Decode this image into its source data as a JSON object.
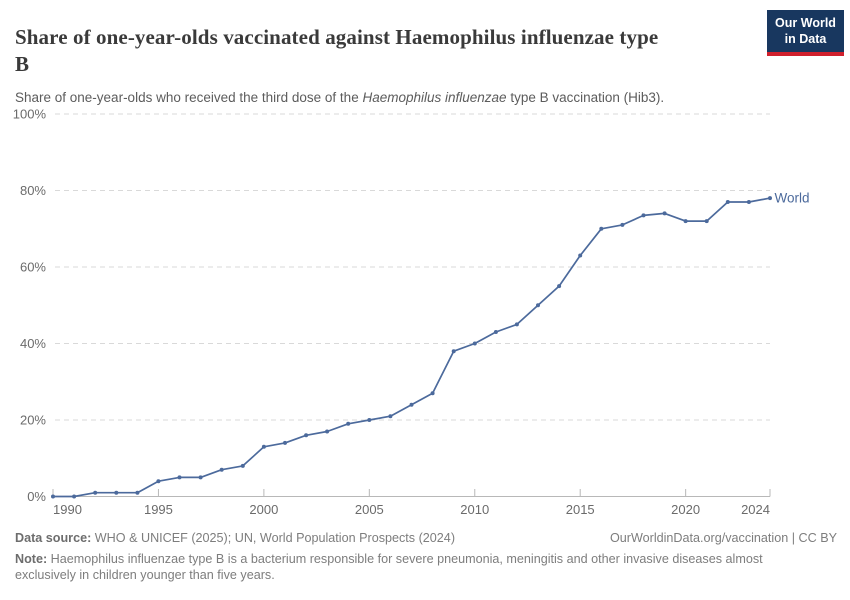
{
  "header": {
    "title": "Share of one-year-olds vaccinated against Haemophilus influenzae type B",
    "subtitle_prefix": "Share of one-year-olds who received the third dose of the ",
    "subtitle_italic": "Haemophilus influenzae",
    "subtitle_suffix": " type B vaccination (Hib3).",
    "logo": {
      "line1": "Our World",
      "line2": "in Data",
      "bg_color": "#18375f",
      "bar_color": "#d0202c"
    }
  },
  "chart_data": {
    "type": "line",
    "title": "Share of one-year-olds vaccinated against Haemophilus influenzae type B",
    "xlabel": "",
    "ylabel": "",
    "xlim": [
      1990,
      2024
    ],
    "ylim": [
      0,
      100
    ],
    "grid": "horizontal-dashed",
    "legend_position": "end-of-line",
    "x": [
      1990,
      1991,
      1992,
      1993,
      1994,
      1995,
      1996,
      1997,
      1998,
      1999,
      2000,
      2001,
      2002,
      2003,
      2004,
      2005,
      2006,
      2007,
      2008,
      2009,
      2010,
      2011,
      2012,
      2013,
      2014,
      2015,
      2016,
      2017,
      2018,
      2019,
      2020,
      2021,
      2022,
      2023,
      2024
    ],
    "series": [
      {
        "name": "World",
        "color": "#4C6A9C",
        "values": [
          0,
          0,
          1,
          1,
          1,
          4,
          5,
          5,
          7,
          8,
          13,
          14,
          16,
          17,
          19,
          20,
          21,
          24,
          27,
          38,
          40,
          43,
          45,
          50,
          55,
          63,
          70,
          71,
          73.5,
          74,
          72,
          72,
          77,
          77,
          78
        ]
      }
    ],
    "yticks": [
      0,
      20,
      40,
      60,
      80,
      100
    ],
    "ytick_suffix": "%",
    "xticks": [
      1990,
      1995,
      2000,
      2005,
      2010,
      2015,
      2020,
      2024
    ],
    "colors": {
      "gridline": "#d9d9d9",
      "axis": "#b8b8b8",
      "tick_label": "#6b6b6b"
    }
  },
  "footer": {
    "datasource_label": "Data source:",
    "datasource_text": " WHO & UNICEF (2025); UN, World Population Prospects (2024)",
    "license_text": "OurWorldinData.org/vaccination | CC BY",
    "note_label": "Note:",
    "note_text": " Haemophilus influenzae type B is a bacterium responsible for severe pneumonia, meningitis and other invasive diseases almost exclusively in children younger than five years."
  }
}
